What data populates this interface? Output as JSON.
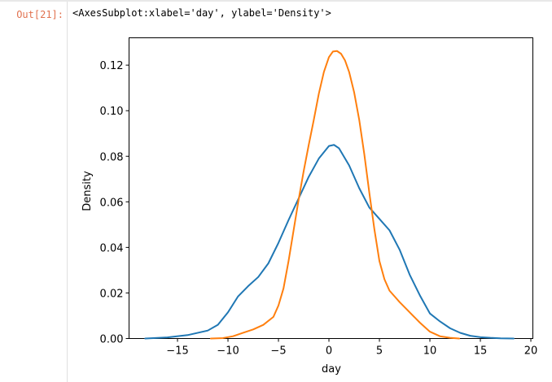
{
  "cell": {
    "prompt": "Out[21]:",
    "repr": "<AxesSubplot:xlabel='day', ylabel='Density'>"
  },
  "chart_data": {
    "type": "line",
    "title": "",
    "xlabel": "day",
    "ylabel": "Density",
    "xlim": [
      -19.8,
      20.2
    ],
    "ylim": [
      0,
      0.132
    ],
    "xticks": [
      -15,
      -10,
      -5,
      0,
      5,
      10,
      15,
      20
    ],
    "xtick_labels": [
      "−15",
      "−10",
      "−5",
      "0",
      "5",
      "10",
      "15",
      "20"
    ],
    "yticks": [
      0.0,
      0.02,
      0.04,
      0.06,
      0.08,
      0.1,
      0.12
    ],
    "ytick_labels": [
      "0.00",
      "0.02",
      "0.04",
      "0.06",
      "0.08",
      "0.10",
      "0.12"
    ],
    "grid": false,
    "legend": "none",
    "series": [
      {
        "color": "#1f77b4",
        "x": [
          -18.2,
          -16,
          -14,
          -12,
          -11,
          -10,
          -9,
          -8,
          -7,
          -6,
          -5,
          -4,
          -3,
          -2,
          -1,
          0,
          0.5,
          1,
          2,
          3,
          4,
          5,
          6,
          7,
          8,
          9,
          10,
          11,
          12,
          13,
          14,
          15,
          16,
          17,
          18.3
        ],
        "y": [
          0.0,
          0.0005,
          0.0015,
          0.0035,
          0.006,
          0.0115,
          0.0185,
          0.023,
          0.027,
          0.033,
          0.042,
          0.052,
          0.0615,
          0.071,
          0.079,
          0.0845,
          0.085,
          0.0835,
          0.076,
          0.066,
          0.0575,
          0.0525,
          0.0475,
          0.039,
          0.028,
          0.019,
          0.011,
          0.0075,
          0.0045,
          0.0025,
          0.0012,
          0.0006,
          0.0003,
          0.0001,
          0.0
        ]
      },
      {
        "color": "#ff7f0e",
        "x": [
          -11.7,
          -10.5,
          -9.5,
          -8.5,
          -7.5,
          -6.5,
          -5.5,
          -5,
          -4.5,
          -4,
          -3.5,
          -3,
          -2.5,
          -2,
          -1.5,
          -1,
          -0.5,
          0,
          0.4,
          0.8,
          1.2,
          1.6,
          2,
          2.5,
          3,
          3.5,
          4,
          4.5,
          5,
          5.5,
          6,
          6.5,
          7,
          8,
          9,
          10,
          11,
          12,
          12.9
        ],
        "y": [
          0.0,
          0.0002,
          0.001,
          0.0025,
          0.004,
          0.006,
          0.0095,
          0.0145,
          0.022,
          0.034,
          0.0475,
          0.061,
          0.0735,
          0.085,
          0.096,
          0.1075,
          0.117,
          0.1235,
          0.126,
          0.1262,
          0.125,
          0.122,
          0.117,
          0.108,
          0.096,
          0.081,
          0.064,
          0.048,
          0.034,
          0.026,
          0.021,
          0.0185,
          0.016,
          0.0115,
          0.007,
          0.003,
          0.001,
          0.0003,
          0.0
        ]
      }
    ]
  }
}
